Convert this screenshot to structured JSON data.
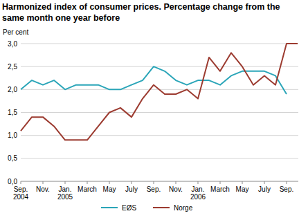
{
  "chart_data": {
    "type": "line",
    "title": "Harmonized index of consumer prices. Percentage change from the same month one year before",
    "y_label": "Per cent",
    "categories": [
      "Sep.\n2004",
      null,
      "Nov.",
      null,
      "Jan.\n2005",
      null,
      "March",
      null,
      "May",
      null,
      "July",
      null,
      "Sep.",
      null,
      "Nov.",
      null,
      "Jan.\n2006",
      null,
      "March",
      null,
      "May",
      null,
      "July",
      null,
      "Sep.",
      null
    ],
    "series": [
      {
        "name": "EØS",
        "color": "#2aa5b8",
        "values": [
          2.0,
          2.2,
          2.1,
          2.2,
          2.0,
          2.1,
          2.1,
          2.1,
          2.0,
          2.0,
          2.1,
          2.2,
          2.5,
          2.4,
          2.2,
          2.1,
          2.2,
          2.2,
          2.1,
          2.3,
          2.4,
          2.4,
          2.4,
          2.3,
          1.9,
          null
        ]
      },
      {
        "name": "Norge",
        "color": "#9c3b30",
        "values": [
          1.1,
          1.4,
          1.4,
          1.2,
          0.9,
          0.9,
          0.9,
          1.2,
          1.5,
          1.6,
          1.4,
          1.8,
          2.1,
          1.9,
          1.9,
          2.0,
          1.8,
          2.7,
          2.4,
          2.8,
          2.5,
          2.1,
          2.3,
          2.1,
          3.0,
          3.0
        ]
      }
    ],
    "ylim": [
      0,
      3
    ],
    "yticks": [
      {
        "value": 0,
        "label": "0,0"
      },
      {
        "value": 0.5,
        "label": "0,5"
      },
      {
        "value": 1,
        "label": "1,0"
      },
      {
        "value": 1.5,
        "label": "1,5"
      },
      {
        "value": 2,
        "label": "2,0"
      },
      {
        "value": 2.5,
        "label": "2,5"
      },
      {
        "value": 3,
        "label": "3,0"
      }
    ],
    "grid": true,
    "legend": "bottom"
  }
}
